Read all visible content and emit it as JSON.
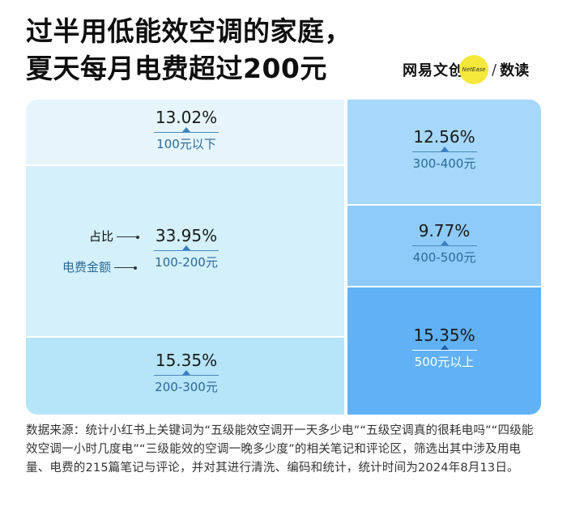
{
  "title_line1": "过半用低能效空调的家庭，",
  "title_line2": "夏天每月电费超过200元",
  "brand": {
    "name": "网易文创",
    "badge": "NetEase",
    "slash": "/",
    "sub": "数读"
  },
  "legend": {
    "share": "占比",
    "amount": "电费金额"
  },
  "colors": {
    "lt100": "#e6f5fc",
    "r100_200": "#d3f0fb",
    "r200_300": "#b6e4f8",
    "r300_400": "#a6d8fb",
    "r400_500": "#8ecbfa",
    "gt500": "#60b1f5"
  },
  "chart_data": {
    "type": "treemap",
    "categories": [
      "100元以下",
      "100-200元",
      "200-300元",
      "300-400元",
      "400-500元",
      "500元以上"
    ],
    "values": [
      13.02,
      33.95,
      15.35,
      12.56,
      9.77,
      15.35
    ],
    "labels": [
      "13.02%",
      "33.95%",
      "15.35%",
      "12.56%",
      "9.77%",
      "15.35%"
    ]
  },
  "source": "数据来源：统计小红书上关键词为“五级能效空调开一天多少电”“五级空调真的很耗电吗”“四级能效空调一小时几度电”“三级能效的空调一晚多少度”的相关笔记和评论区，筛选出其中涉及用电量、电费的215篇笔记与评论，并对其进行清洗、编码和统计，统计时间为2024年8月13日。"
}
